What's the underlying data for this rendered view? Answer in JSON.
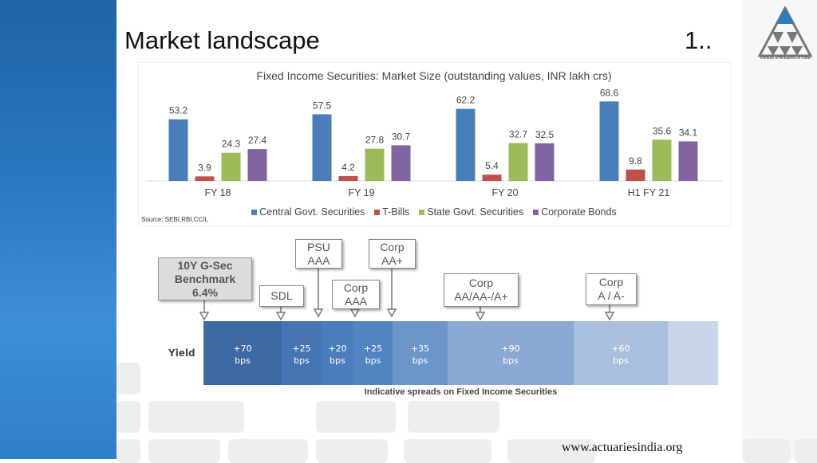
{
  "slide": {
    "title": "Market landscape",
    "number": "1..",
    "website": "www.actuariesindia.org",
    "logo_caption": "Institute of Actuaries of India"
  },
  "chart_data": {
    "type": "bar",
    "title": "Fixed Income Securities: Market Size (outstanding values, INR lakh crs)",
    "categories": [
      "FY 18",
      "FY 19",
      "FY 20",
      "H1 FY 21"
    ],
    "series": [
      {
        "name": "Central Govt. Securities",
        "values": [
          53.2,
          57.5,
          62.2,
          68.6
        ],
        "color": "#4a7ebb"
      },
      {
        "name": "T-Bills",
        "values": [
          3.9,
          4.2,
          5.4,
          9.8
        ],
        "color": "#c0504d"
      },
      {
        "name": "State Govt. Securities",
        "values": [
          24.3,
          27.8,
          32.7,
          35.6
        ],
        "color": "#9bbb59"
      },
      {
        "name": "Corporate Bonds",
        "values": [
          27.4,
          30.7,
          32.5,
          34.1
        ],
        "color": "#8064a2"
      }
    ],
    "ylim": [
      0,
      75
    ],
    "legend": "bottom",
    "grid": false,
    "source": "Source: SEBI,RBI,CCIL"
  },
  "callouts": {
    "benchmark": [
      "10Y G-Sec",
      "Benchmark",
      "6.4%"
    ],
    "sdl": [
      "SDL"
    ],
    "psu_aaa": [
      "PSU",
      "AAA"
    ],
    "corp_aaa": [
      "Corp",
      "AAA"
    ],
    "corp_aa_plus": [
      "Corp",
      "AA+"
    ],
    "corp_aa": [
      "Corp",
      "AA/AA-/A+"
    ],
    "corp_a": [
      "Corp",
      "A / A-"
    ]
  },
  "spreads": {
    "row_label": "Yield",
    "caption": "Indicative spreads on Fixed Income Securities",
    "segments": [
      {
        "value": "+70",
        "unit": "bps",
        "color": "#3e6aa3"
      },
      {
        "value": "+25",
        "unit": "bps",
        "color": "#4575b2"
      },
      {
        "value": "+20",
        "unit": "bps",
        "color": "#4b7cbc"
      },
      {
        "value": "+25",
        "unit": "bps",
        "color": "#5284c2"
      },
      {
        "value": "+35",
        "unit": "bps",
        "color": "#6c95ca"
      },
      {
        "value": "+90",
        "unit": "bps",
        "color": "#8aa9d4"
      },
      {
        "value": "+60",
        "unit": "bps",
        "color": "#a9bfe0"
      },
      {
        "value": "",
        "unit": "",
        "color": "#c8d5ea"
      }
    ]
  }
}
